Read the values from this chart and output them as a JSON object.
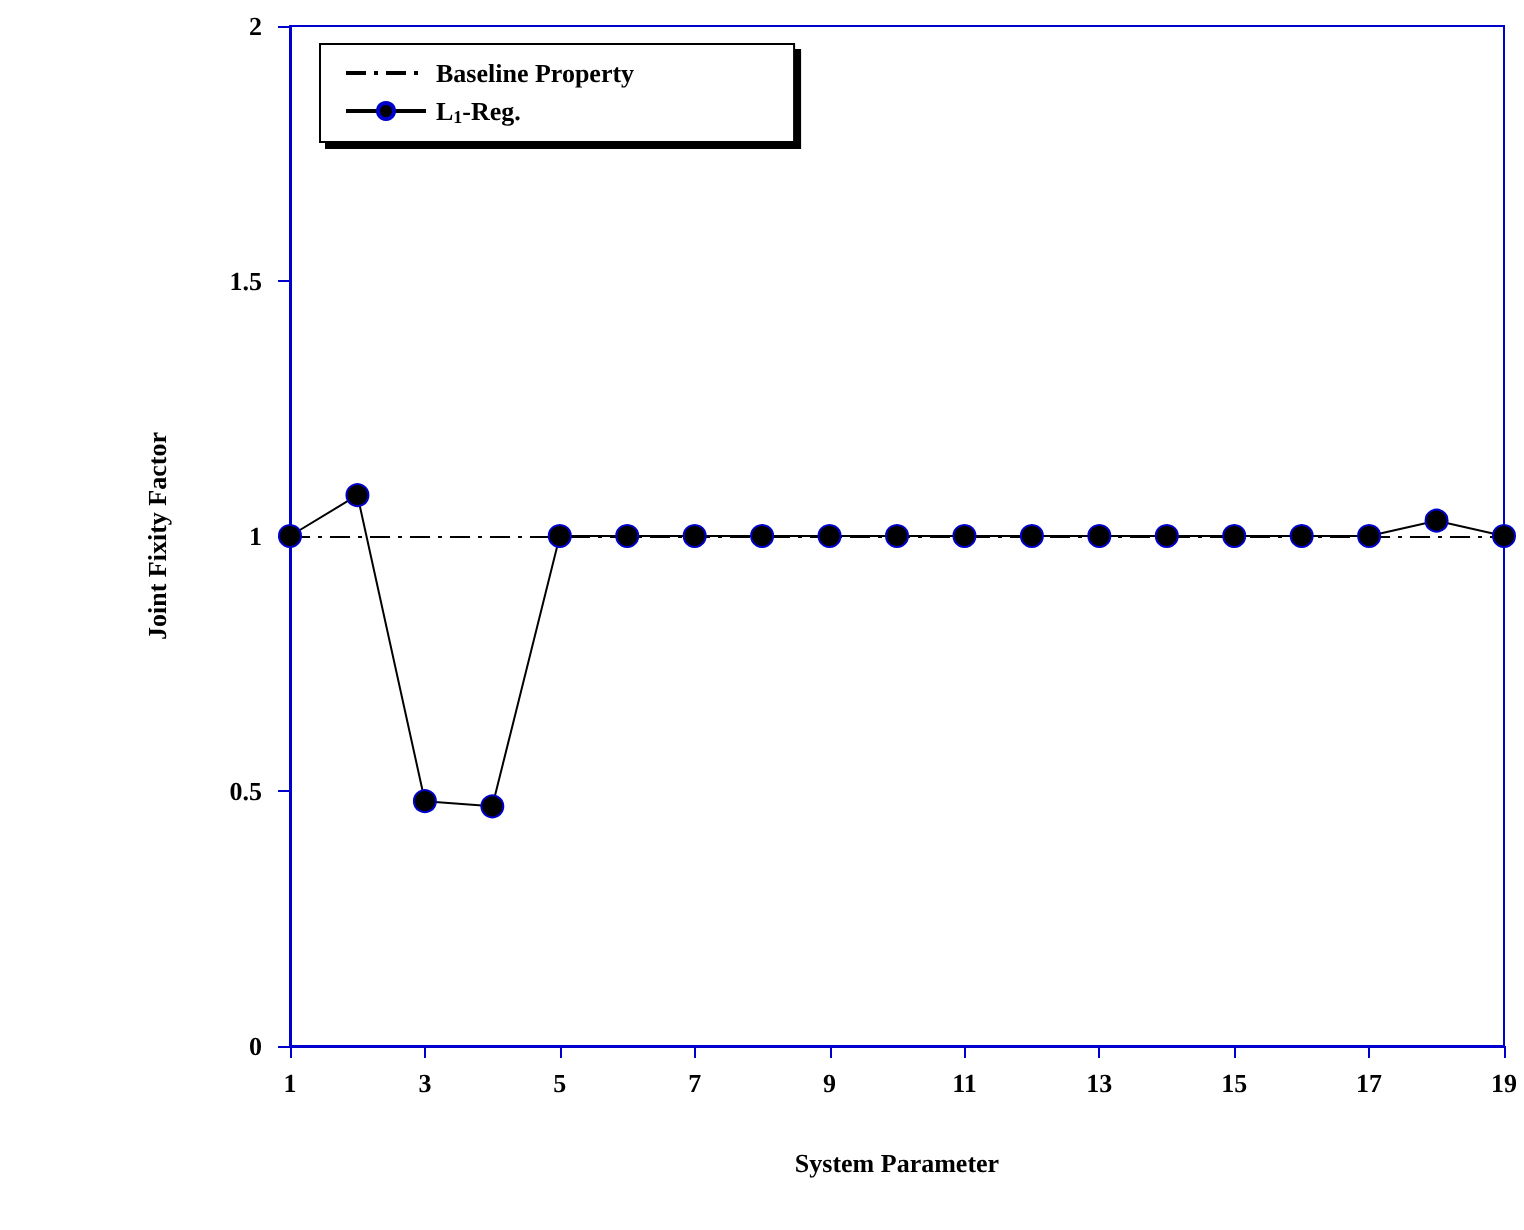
{
  "chart_data": {
    "type": "line",
    "xlabel": "System Parameter",
    "ylabel": "Joint Fixity Factor",
    "x": [
      1,
      2,
      3,
      4,
      5,
      6,
      7,
      8,
      9,
      10,
      11,
      12,
      13,
      14,
      15,
      16,
      17,
      18,
      19
    ],
    "series": [
      {
        "name": "L$_{1}$-Reg.",
        "color": "#000000",
        "values": [
          1,
          1.08,
          0.48,
          0.47,
          1,
          1,
          1,
          1,
          1,
          1,
          1,
          1,
          1,
          1,
          1,
          1,
          1,
          1.03,
          1
        ]
      }
    ],
    "ref_lines": [
      {
        "axis": "y",
        "value": 1,
        "label": "Baseline Property",
        "color": "#000000",
        "line_style": "dashdot"
      }
    ],
    "xlim": [
      1,
      19
    ],
    "xticks": [
      1,
      3,
      5,
      7,
      9,
      11,
      13,
      15,
      17,
      19
    ],
    "ylim": [
      0,
      2
    ],
    "yticks": [
      0,
      0.5,
      1,
      1.5,
      2
    ],
    "marker": "circle",
    "line_style": "solid",
    "grid": false,
    "legend": "top left"
  }
}
